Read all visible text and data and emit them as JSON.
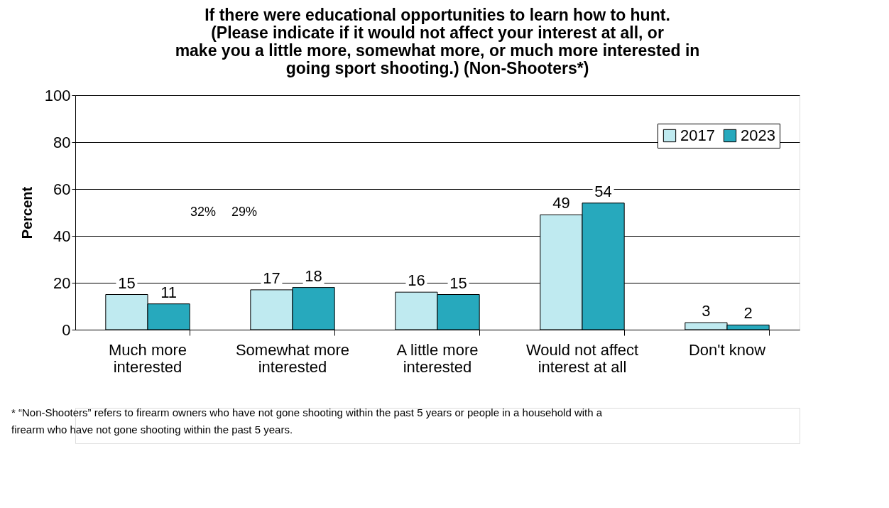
{
  "chart_data": {
    "type": "bar",
    "title": "If there were educational opportunities to learn how to hunt. (Please indicate if it would not affect your interest at all, or make you a little more, somewhat more, or much more interested in going sport shooting.) (Non-Shooters*)",
    "ylabel": "Percent",
    "categories": [
      "Much more interested",
      "Somewhat more interested",
      "A little more interested",
      "Would not affect interest at all",
      "Don't know"
    ],
    "series": [
      {
        "name": "2017",
        "color": "#bfeaf0",
        "values": [
          15,
          17,
          16,
          49,
          3
        ]
      },
      {
        "name": "2023",
        "color": "#27a9bd",
        "values": [
          11,
          18,
          15,
          54,
          2
        ]
      }
    ],
    "ylim": [
      0,
      100
    ],
    "yticks": [
      0,
      20,
      40,
      60,
      80,
      100
    ],
    "grid": "y",
    "legend": "top right",
    "data_labels": true,
    "annotations": [
      "32%",
      "29%",
      "* “Non-Shooters” refers to firearm owners who have not gone shooting within the past 5 years or people in a household with a firearm who have not gone shooting within the past 5 years."
    ]
  }
}
